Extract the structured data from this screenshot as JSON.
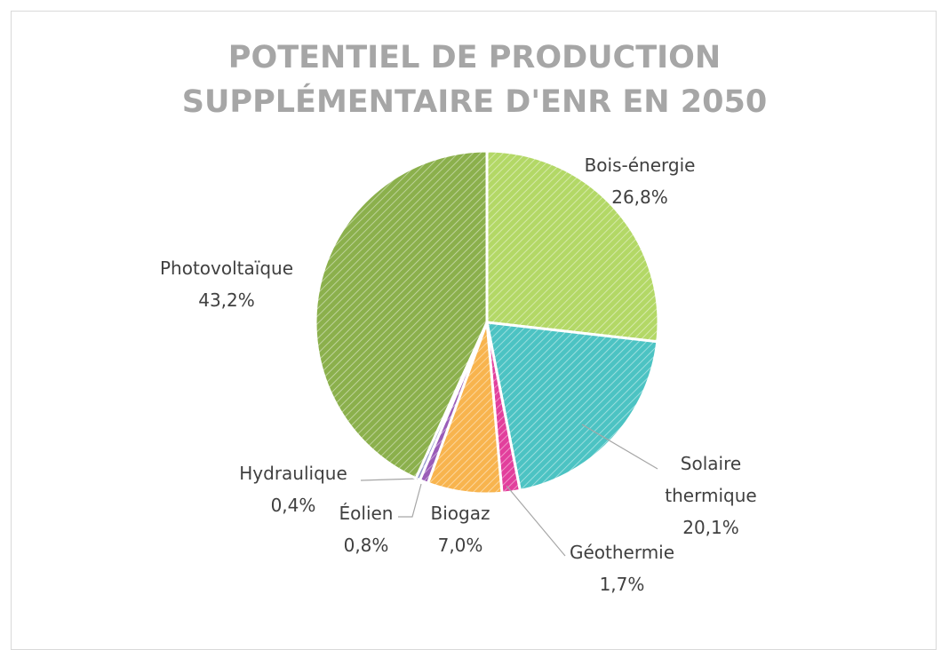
{
  "chart_data": {
    "type": "pie",
    "title": "POTENTIEL DE PRODUCTION SUPPLÉMENTAIRE D'ENR EN 2050",
    "categories": [
      "Bois-énergie",
      "Solaire thermique",
      "Géothermie",
      "Biogaz",
      "Éolien",
      "Hydraulique",
      "Photovoltaïque"
    ],
    "values": [
      26.8,
      20.1,
      1.7,
      7.0,
      0.8,
      0.4,
      43.2
    ],
    "value_labels": [
      "26,8%",
      "20,1%",
      "1,7%",
      "7,0%",
      "0,8%",
      "0,4%",
      "43,2%"
    ],
    "colors": [
      "#b3d866",
      "#4cc3c3",
      "#e23f9c",
      "#f8b44e",
      "#9a5cb8",
      "#8f93c9",
      "#8bb04c"
    ]
  }
}
